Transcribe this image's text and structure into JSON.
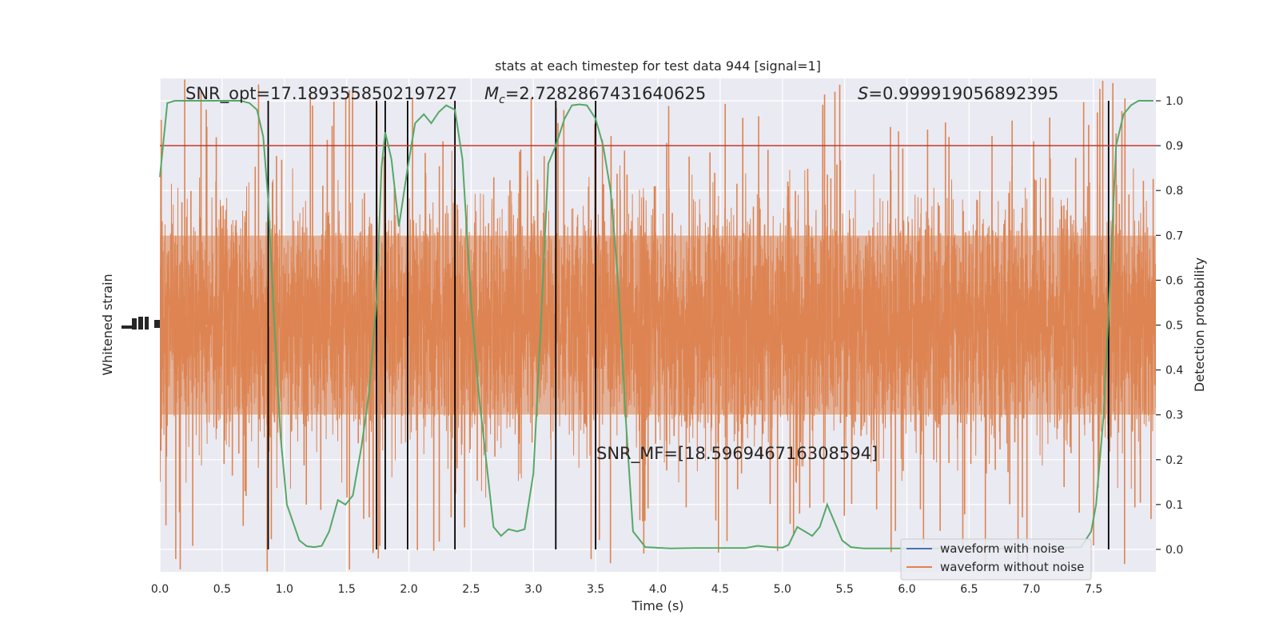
{
  "chart_data": {
    "type": "line",
    "title": "stats at each timestep for test data 944 [signal=1]",
    "xlabel": "Time (s)",
    "ylabel_left": "Whitened strain",
    "ylabel_right": "Detection probability",
    "xlim": [
      0.0,
      8.0
    ],
    "ylim_right": [
      -0.05,
      1.05
    ],
    "x_ticks": [
      "0.0",
      "0.5",
      "1.0",
      "1.5",
      "2.0",
      "2.5",
      "3.0",
      "3.5",
      "4.0",
      "4.5",
      "5.0",
      "5.5",
      "6.0",
      "6.5",
      "7.0",
      "7.5"
    ],
    "y_ticks_right": [
      "0.0",
      "0.1",
      "0.2",
      "0.3",
      "0.4",
      "0.5",
      "0.6",
      "0.7",
      "0.8",
      "0.9",
      "1.0"
    ],
    "grid": true,
    "annotations": {
      "snr_opt": "SNR_opt=17.189355850219727",
      "mc_symbol": "M",
      "mc_sub": "c",
      "mc_value": "=2.7282867431640625",
      "s_symbol": "S",
      "s_value": "=0.999919056892395",
      "snr_mf": "SNR_MF=[18.596946716308594]"
    },
    "threshold": 0.9,
    "vertical_lines": [
      0.87,
      1.74,
      1.81,
      1.99,
      2.37,
      3.18,
      3.5,
      7.62
    ],
    "legend": {
      "position": "lower-right",
      "entries": [
        "waveform with noise",
        "waveform without noise"
      ]
    },
    "series": [
      {
        "name": "Detection probability",
        "x": [
          0.0,
          0.06,
          0.12,
          0.25,
          0.5,
          0.65,
          0.72,
          0.78,
          0.83,
          0.87,
          0.92,
          0.97,
          1.02,
          1.07,
          1.12,
          1.18,
          1.24,
          1.3,
          1.36,
          1.43,
          1.49,
          1.55,
          1.62,
          1.68,
          1.74,
          1.78,
          1.81,
          1.86,
          1.92,
          1.99,
          2.05,
          2.12,
          2.18,
          2.24,
          2.3,
          2.37,
          2.43,
          2.5,
          2.56,
          2.62,
          2.68,
          2.74,
          2.8,
          2.87,
          2.93,
          3.0,
          3.06,
          3.12,
          3.18,
          3.25,
          3.31,
          3.37,
          3.43,
          3.5,
          3.56,
          3.62,
          3.68,
          3.74,
          3.8,
          3.9,
          4.1,
          4.3,
          4.5,
          4.7,
          4.8,
          4.9,
          5.0,
          5.05,
          5.12,
          5.18,
          5.24,
          5.3,
          5.36,
          5.42,
          5.48,
          5.55,
          5.65,
          5.8,
          6.0,
          6.5,
          7.0,
          7.4,
          7.48,
          7.52,
          7.58,
          7.62,
          7.68,
          7.74,
          7.8,
          7.86,
          7.92,
          7.98
        ],
        "y": [
          0.83,
          0.995,
          1.0,
          1.0,
          1.0,
          1.0,
          0.995,
          0.98,
          0.92,
          0.78,
          0.5,
          0.25,
          0.1,
          0.06,
          0.02,
          0.007,
          0.005,
          0.008,
          0.04,
          0.11,
          0.1,
          0.12,
          0.23,
          0.35,
          0.55,
          0.85,
          0.93,
          0.87,
          0.72,
          0.85,
          0.95,
          0.97,
          0.95,
          0.975,
          0.99,
          0.98,
          0.87,
          0.55,
          0.35,
          0.2,
          0.05,
          0.03,
          0.045,
          0.04,
          0.045,
          0.17,
          0.5,
          0.86,
          0.9,
          0.96,
          0.99,
          0.992,
          0.99,
          0.96,
          0.9,
          0.8,
          0.6,
          0.3,
          0.04,
          0.005,
          0.002,
          0.003,
          0.003,
          0.003,
          0.008,
          0.005,
          0.004,
          0.01,
          0.05,
          0.04,
          0.03,
          0.05,
          0.1,
          0.06,
          0.02,
          0.005,
          0.002,
          0.002,
          0.002,
          0.002,
          0.002,
          0.005,
          0.04,
          0.1,
          0.3,
          0.53,
          0.9,
          0.97,
          0.99,
          1.0,
          1.0,
          1.0
        ]
      }
    ]
  }
}
